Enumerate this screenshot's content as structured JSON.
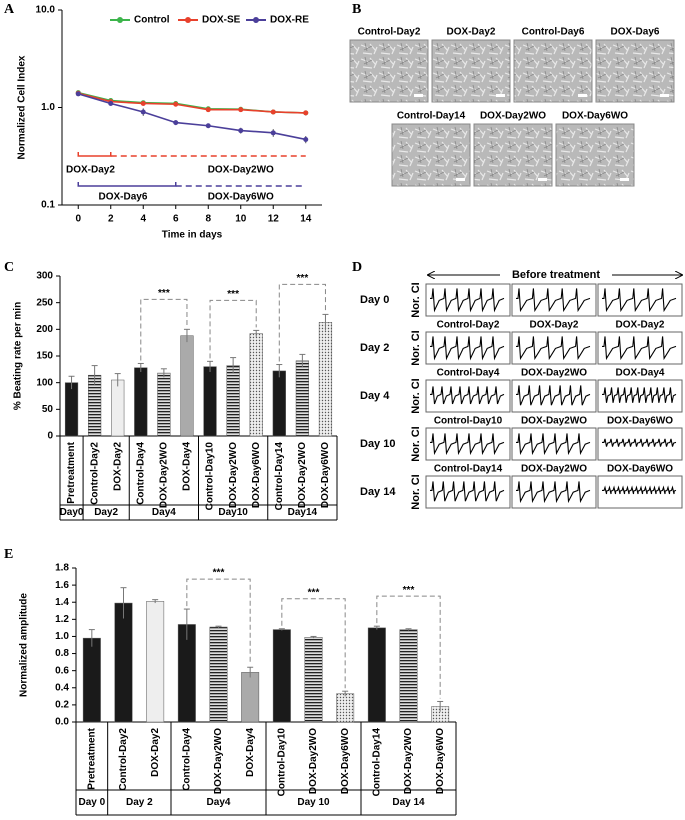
{
  "chart_data": [
    {
      "panel": "A",
      "type": "line",
      "ylabel": "Normalized Cell Index",
      "xlabel": "Time in days",
      "x": [
        0,
        2,
        4,
        6,
        8,
        10,
        12,
        14
      ],
      "xlim": [
        -1,
        15
      ],
      "xticks": [
        0,
        2,
        4,
        6,
        8,
        10,
        12,
        14
      ],
      "ylim": [
        0.1,
        10
      ],
      "log_y": true,
      "yticks": [
        0.1,
        {
          "value": 1,
          "label": "1.0"
        },
        {
          "value": 10,
          "label": "10.0"
        }
      ],
      "series": [
        {
          "name": "Control",
          "color": "#3cb44b",
          "values": [
            1.42,
            1.18,
            1.12,
            1.1,
            0.97,
            0.96,
            0.9,
            0.88
          ],
          "errors": [
            0.03,
            0.04,
            0.04,
            0.04,
            0.03,
            0.03,
            0.04,
            0.05
          ]
        },
        {
          "name": "DOX-SE",
          "color": "#e8412c",
          "values": [
            1.4,
            1.15,
            1.1,
            1.08,
            0.95,
            0.95,
            0.9,
            0.88
          ],
          "errors": [
            0.03,
            0.04,
            0.04,
            0.04,
            0.03,
            0.03,
            0.04,
            0.05
          ]
        },
        {
          "name": "DOX-RE",
          "color": "#4b3f9a",
          "values": [
            1.38,
            1.1,
            0.9,
            0.7,
            0.65,
            0.58,
            0.55,
            0.47
          ],
          "errors": [
            0.03,
            0.05,
            0.08,
            0.04,
            0.03,
            0.04,
            0.05,
            0.04
          ]
        }
      ],
      "annotations": [
        {
          "text": "DOX-Day2",
          "color": "#000000"
        },
        {
          "text": "DOX-Day2WO",
          "color": "#999999"
        },
        {
          "text": "DOX-Day6",
          "color": "#000000"
        },
        {
          "text": "DOX-Day6WO",
          "color": "#999999"
        }
      ]
    },
    {
      "panel": "C",
      "type": "bar",
      "ylabel": "% Beating rate per min",
      "categories": [
        "Pretreatment",
        "Control-Day2",
        "DOX-Day2",
        "Control-Day4",
        "DOX-Day2WO",
        "DOX-Day4",
        "Control-Day10",
        "DOX-Day2WO",
        "DOX-Day6WO",
        "Control-Day14",
        "DOX-Day2WO",
        "DOX-Day6WO"
      ],
      "values": [
        100,
        114,
        105,
        128,
        118,
        188,
        130,
        132,
        192,
        122,
        141,
        213
      ],
      "errors": [
        12,
        18,
        12,
        8,
        8,
        12,
        10,
        15,
        6,
        12,
        12,
        15
      ],
      "styles": [
        "black",
        "stripes",
        "light",
        "black",
        "stripes",
        "gray",
        "black",
        "stripes",
        "dots",
        "black",
        "stripes",
        "dots"
      ],
      "ylim": [
        0,
        300
      ],
      "yticks": [
        0,
        50,
        100,
        150,
        200,
        250,
        300
      ],
      "groups": [
        {
          "label": "Day0",
          "size": 1
        },
        {
          "label": "Day2",
          "size": 2
        },
        {
          "label": "Day4",
          "size": 3,
          "significance": "***"
        },
        {
          "label": "Day10",
          "size": 3,
          "significance": "***"
        },
        {
          "label": "Day14",
          "size": 3,
          "significance": "***"
        }
      ]
    },
    {
      "panel": "E",
      "type": "bar",
      "ylabel": "Normalized amplitude",
      "categories": [
        "Pretreatment",
        "Control-Day2",
        "DOX-Day2",
        "Control-Day4",
        "DOX-Day2WO",
        "DOX-Day4",
        "Control-Day10",
        "DOX-Day2WO",
        "DOX-Day6WO",
        "Control-Day14",
        "DOX-Day2WO",
        "DOX-Day6WO"
      ],
      "values": [
        0.98,
        1.39,
        1.41,
        1.14,
        1.11,
        0.58,
        1.08,
        0.99,
        0.33,
        1.1,
        1.08,
        0.18
      ],
      "errors": [
        0.1,
        0.18,
        0.02,
        0.18,
        0.01,
        0.06,
        0.01,
        0.01,
        0.03,
        0.02,
        0.01,
        0.06
      ],
      "styles": [
        "black",
        "black",
        "light",
        "black",
        "stripes",
        "gray",
        "black",
        "stripes",
        "dots",
        "black",
        "stripes",
        "dots"
      ],
      "ylim": [
        0,
        1.8
      ],
      "yticks": [
        {
          "value": 0,
          "label": "0.0"
        },
        0.2,
        0.4,
        0.6,
        0.8,
        {
          "value": 1,
          "label": "1.0"
        },
        1.2,
        1.4,
        1.6,
        1.8
      ],
      "groups": [
        {
          "label": "Day 0",
          "size": 1
        },
        {
          "label": "Day 2",
          "size": 2
        },
        {
          "label": "Day4",
          "size": 3,
          "significance": "***"
        },
        {
          "label": "Day 10",
          "size": 3,
          "significance": "***"
        },
        {
          "label": "Day 14",
          "size": 3,
          "significance": "***"
        }
      ]
    }
  ],
  "panel_b": {
    "panel": "B",
    "images": [
      "Control-Day2",
      "DOX-Day2",
      "Control-Day6",
      "DOX-Day6",
      "Control-Day14",
      "DOX-Day2WO",
      "DOX-Day6WO"
    ]
  },
  "panel_d": {
    "panel": "D",
    "header": "Before treatment",
    "ylabel": "Nor. CI",
    "rows": [
      {
        "label": "Day 0",
        "columns": []
      },
      {
        "label": "Day 2",
        "columns": [
          "Control-Day2",
          "DOX-Day2",
          "DOX-Day2"
        ]
      },
      {
        "label": "Day 4",
        "columns": [
          "Control-Day4",
          "DOX-Day2WO",
          "DOX-Day4"
        ]
      },
      {
        "label": "Day 10",
        "columns": [
          "Control-Day10",
          "DOX-Day2WO",
          "DOX-Day6WO"
        ]
      },
      {
        "label": "Day 14",
        "columns": [
          "Control-Day14",
          "DOX-Day2WO",
          "DOX-Day6WO"
        ]
      }
    ]
  }
}
